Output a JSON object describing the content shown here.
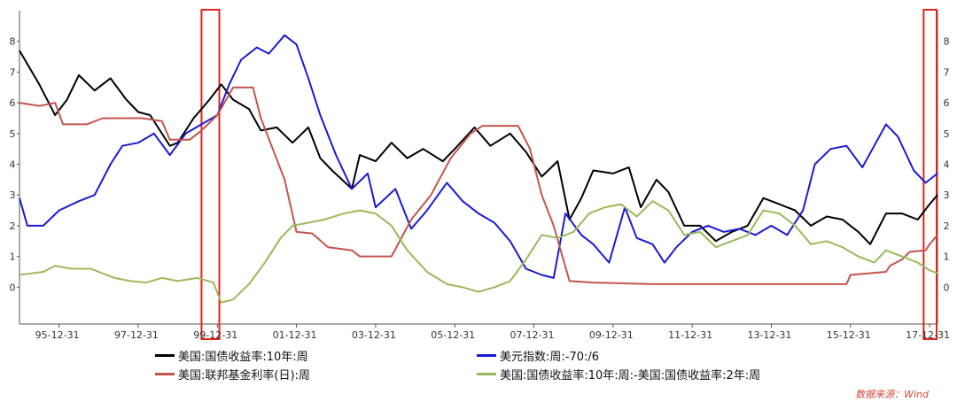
{
  "chart_data": {
    "type": "line",
    "x_ticks": [
      "95-12-31",
      "97-12-31",
      "99-12-31",
      "01-12-31",
      "03-12-31",
      "05-12-31",
      "07-12-31",
      "09-12-31",
      "11-12-31",
      "13-12-31",
      "15-12-31",
      "17-12-31"
    ],
    "y_ticks": [
      "0",
      "1",
      "2",
      "3",
      "4",
      "5",
      "6",
      "7",
      "8"
    ],
    "ylim": [
      -1.2,
      9
    ],
    "xlim": [
      1995.0,
      2018.2
    ],
    "grid": false,
    "legend_position": "bottom",
    "highlight_ranges": [
      [
        1999.6,
        2000.05
      ],
      [
        2017.85,
        2018.3
      ]
    ],
    "series": [
      {
        "name": "美国:国债收益率:10年:周",
        "color": "#000000",
        "points": [
          [
            1995.0,
            7.7
          ],
          [
            1995.5,
            6.6
          ],
          [
            1995.9,
            5.6
          ],
          [
            1996.2,
            6.1
          ],
          [
            1996.5,
            6.9
          ],
          [
            1996.9,
            6.4
          ],
          [
            1997.3,
            6.8
          ],
          [
            1997.7,
            6.1
          ],
          [
            1998.0,
            5.7
          ],
          [
            1998.3,
            5.6
          ],
          [
            1998.8,
            4.6
          ],
          [
            1999.0,
            4.7
          ],
          [
            1999.4,
            5.5
          ],
          [
            1999.8,
            6.1
          ],
          [
            2000.1,
            6.6
          ],
          [
            2000.4,
            6.1
          ],
          [
            2000.8,
            5.8
          ],
          [
            2001.1,
            5.1
          ],
          [
            2001.5,
            5.2
          ],
          [
            2001.9,
            4.7
          ],
          [
            2002.3,
            5.2
          ],
          [
            2002.6,
            4.2
          ],
          [
            2002.9,
            3.8
          ],
          [
            2003.4,
            3.2
          ],
          [
            2003.6,
            4.3
          ],
          [
            2004.0,
            4.1
          ],
          [
            2004.4,
            4.7
          ],
          [
            2004.8,
            4.2
          ],
          [
            2005.2,
            4.5
          ],
          [
            2005.7,
            4.1
          ],
          [
            2006.0,
            4.5
          ],
          [
            2006.5,
            5.2
          ],
          [
            2006.9,
            4.6
          ],
          [
            2007.4,
            5.0
          ],
          [
            2007.8,
            4.4
          ],
          [
            2008.2,
            3.6
          ],
          [
            2008.6,
            4.1
          ],
          [
            2008.9,
            2.2
          ],
          [
            2009.2,
            2.9
          ],
          [
            2009.5,
            3.8
          ],
          [
            2010.0,
            3.7
          ],
          [
            2010.4,
            3.9
          ],
          [
            2010.7,
            2.6
          ],
          [
            2011.1,
            3.5
          ],
          [
            2011.4,
            3.1
          ],
          [
            2011.8,
            2.0
          ],
          [
            2012.2,
            2.0
          ],
          [
            2012.6,
            1.5
          ],
          [
            2013.0,
            1.8
          ],
          [
            2013.4,
            2.0
          ],
          [
            2013.8,
            2.9
          ],
          [
            2014.2,
            2.7
          ],
          [
            2014.6,
            2.5
          ],
          [
            2015.0,
            2.0
          ],
          [
            2015.4,
            2.3
          ],
          [
            2015.8,
            2.2
          ],
          [
            2016.2,
            1.8
          ],
          [
            2016.5,
            1.4
          ],
          [
            2016.9,
            2.4
          ],
          [
            2017.3,
            2.4
          ],
          [
            2017.7,
            2.2
          ],
          [
            2018.0,
            2.7
          ],
          [
            2018.2,
            3.0
          ]
        ]
      },
      {
        "name": "美元指数:周:-70:/6",
        "color": "#1a1ad4",
        "points": [
          [
            1995.0,
            2.9
          ],
          [
            1995.2,
            2.0
          ],
          [
            1995.6,
            2.0
          ],
          [
            1996.0,
            2.5
          ],
          [
            1996.5,
            2.8
          ],
          [
            1996.9,
            3.0
          ],
          [
            1997.3,
            4.0
          ],
          [
            1997.6,
            4.6
          ],
          [
            1998.0,
            4.7
          ],
          [
            1998.4,
            5.0
          ],
          [
            1998.8,
            4.3
          ],
          [
            1999.2,
            5.0
          ],
          [
            1999.6,
            5.3
          ],
          [
            2000.0,
            5.6
          ],
          [
            2000.3,
            6.6
          ],
          [
            2000.6,
            7.4
          ],
          [
            2001.0,
            7.8
          ],
          [
            2001.3,
            7.6
          ],
          [
            2001.7,
            8.2
          ],
          [
            2002.0,
            7.9
          ],
          [
            2002.3,
            6.8
          ],
          [
            2002.6,
            5.6
          ],
          [
            2003.0,
            4.3
          ],
          [
            2003.4,
            3.2
          ],
          [
            2003.8,
            3.7
          ],
          [
            2004.0,
            2.6
          ],
          [
            2004.5,
            3.2
          ],
          [
            2004.9,
            1.9
          ],
          [
            2005.3,
            2.5
          ],
          [
            2005.8,
            3.4
          ],
          [
            2006.2,
            2.8
          ],
          [
            2006.6,
            2.4
          ],
          [
            2007.0,
            2.1
          ],
          [
            2007.4,
            1.5
          ],
          [
            2007.8,
            0.6
          ],
          [
            2008.2,
            0.4
          ],
          [
            2008.5,
            0.3
          ],
          [
            2008.8,
            2.4
          ],
          [
            2009.2,
            1.7
          ],
          [
            2009.5,
            1.4
          ],
          [
            2009.9,
            0.8
          ],
          [
            2010.3,
            2.6
          ],
          [
            2010.6,
            1.6
          ],
          [
            2011.0,
            1.4
          ],
          [
            2011.3,
            0.8
          ],
          [
            2011.6,
            1.3
          ],
          [
            2012.0,
            1.8
          ],
          [
            2012.4,
            2.0
          ],
          [
            2012.8,
            1.8
          ],
          [
            2013.2,
            1.9
          ],
          [
            2013.6,
            1.7
          ],
          [
            2014.0,
            2.0
          ],
          [
            2014.4,
            1.7
          ],
          [
            2014.8,
            2.5
          ],
          [
            2015.1,
            4.0
          ],
          [
            2015.5,
            4.5
          ],
          [
            2015.9,
            4.6
          ],
          [
            2016.3,
            3.9
          ],
          [
            2016.6,
            4.6
          ],
          [
            2016.9,
            5.3
          ],
          [
            2017.2,
            4.9
          ],
          [
            2017.6,
            3.8
          ],
          [
            2017.9,
            3.4
          ],
          [
            2018.1,
            3.6
          ],
          [
            2018.2,
            3.7
          ]
        ]
      },
      {
        "name": "美国:联邦基金利率(日):周",
        "color": "#c4544d",
        "points": [
          [
            1995.0,
            6.0
          ],
          [
            1995.5,
            5.9
          ],
          [
            1995.9,
            6.0
          ],
          [
            1996.1,
            5.3
          ],
          [
            1996.7,
            5.3
          ],
          [
            1997.1,
            5.5
          ],
          [
            1997.6,
            5.5
          ],
          [
            1998.1,
            5.5
          ],
          [
            1998.6,
            5.4
          ],
          [
            1998.8,
            4.8
          ],
          [
            1999.3,
            4.8
          ],
          [
            1999.6,
            5.1
          ],
          [
            2000.0,
            5.6
          ],
          [
            2000.4,
            6.5
          ],
          [
            2000.9,
            6.5
          ],
          [
            2001.1,
            5.5
          ],
          [
            2001.4,
            4.5
          ],
          [
            2001.7,
            3.5
          ],
          [
            2002.0,
            1.8
          ],
          [
            2002.4,
            1.75
          ],
          [
            2002.8,
            1.3
          ],
          [
            2003.4,
            1.2
          ],
          [
            2003.6,
            1.0
          ],
          [
            2004.4,
            1.0
          ],
          [
            2004.9,
            2.2
          ],
          [
            2005.4,
            3.0
          ],
          [
            2005.9,
            4.2
          ],
          [
            2006.4,
            5.0
          ],
          [
            2006.7,
            5.25
          ],
          [
            2007.6,
            5.25
          ],
          [
            2007.9,
            4.5
          ],
          [
            2008.2,
            3.0
          ],
          [
            2008.5,
            2.0
          ],
          [
            2008.9,
            0.2
          ],
          [
            2009.5,
            0.15
          ],
          [
            2011.0,
            0.1
          ],
          [
            2013.0,
            0.1
          ],
          [
            2014.5,
            0.1
          ],
          [
            2015.9,
            0.1
          ],
          [
            2016.0,
            0.4
          ],
          [
            2016.9,
            0.5
          ],
          [
            2017.0,
            0.7
          ],
          [
            2017.3,
            0.9
          ],
          [
            2017.5,
            1.15
          ],
          [
            2017.9,
            1.2
          ],
          [
            2018.0,
            1.4
          ],
          [
            2018.2,
            1.7
          ]
        ]
      },
      {
        "name": "美国:国债收益率:10年:周:-美国:国债收益率:2年:周",
        "color": "#9aba5a",
        "points": [
          [
            1995.0,
            0.4
          ],
          [
            1995.6,
            0.5
          ],
          [
            1995.9,
            0.7
          ],
          [
            1996.3,
            0.6
          ],
          [
            1996.8,
            0.6
          ],
          [
            1997.4,
            0.3
          ],
          [
            1997.8,
            0.2
          ],
          [
            1998.2,
            0.15
          ],
          [
            1998.6,
            0.3
          ],
          [
            1999.0,
            0.2
          ],
          [
            1999.5,
            0.3
          ],
          [
            1999.9,
            0.15
          ],
          [
            2000.1,
            -0.5
          ],
          [
            2000.4,
            -0.4
          ],
          [
            2000.8,
            0.1
          ],
          [
            2001.2,
            0.8
          ],
          [
            2001.6,
            1.6
          ],
          [
            2001.9,
            2.0
          ],
          [
            2002.3,
            2.1
          ],
          [
            2002.7,
            2.2
          ],
          [
            2003.2,
            2.4
          ],
          [
            2003.6,
            2.5
          ],
          [
            2004.0,
            2.4
          ],
          [
            2004.4,
            2.0
          ],
          [
            2004.8,
            1.2
          ],
          [
            2005.3,
            0.5
          ],
          [
            2005.8,
            0.1
          ],
          [
            2006.2,
            0.0
          ],
          [
            2006.6,
            -0.15
          ],
          [
            2007.0,
            0.0
          ],
          [
            2007.4,
            0.2
          ],
          [
            2007.8,
            0.9
          ],
          [
            2008.2,
            1.7
          ],
          [
            2008.6,
            1.6
          ],
          [
            2009.0,
            1.8
          ],
          [
            2009.4,
            2.4
          ],
          [
            2009.8,
            2.6
          ],
          [
            2010.2,
            2.7
          ],
          [
            2010.6,
            2.3
          ],
          [
            2011.0,
            2.8
          ],
          [
            2011.4,
            2.5
          ],
          [
            2011.8,
            1.7
          ],
          [
            2012.2,
            1.8
          ],
          [
            2012.6,
            1.3
          ],
          [
            2013.0,
            1.5
          ],
          [
            2013.4,
            1.7
          ],
          [
            2013.8,
            2.5
          ],
          [
            2014.2,
            2.4
          ],
          [
            2014.6,
            2.0
          ],
          [
            2015.0,
            1.4
          ],
          [
            2015.4,
            1.5
          ],
          [
            2015.8,
            1.3
          ],
          [
            2016.2,
            1.0
          ],
          [
            2016.6,
            0.8
          ],
          [
            2016.9,
            1.2
          ],
          [
            2017.3,
            1.0
          ],
          [
            2017.7,
            0.8
          ],
          [
            2018.0,
            0.55
          ],
          [
            2018.2,
            0.45
          ]
        ]
      }
    ]
  },
  "legend": {
    "item1": "美国:国债收益率:10年:周",
    "item2": "美元指数:周:-70:/6",
    "item3": "美国:联邦基金利率(日):周",
    "item4": "美国:国债收益率:10年:周:-美国:国债收益率:2年:周"
  },
  "source": "数据来源：Wind",
  "colors": {
    "highlight_box": "#e0231b",
    "axis": "#555555"
  }
}
